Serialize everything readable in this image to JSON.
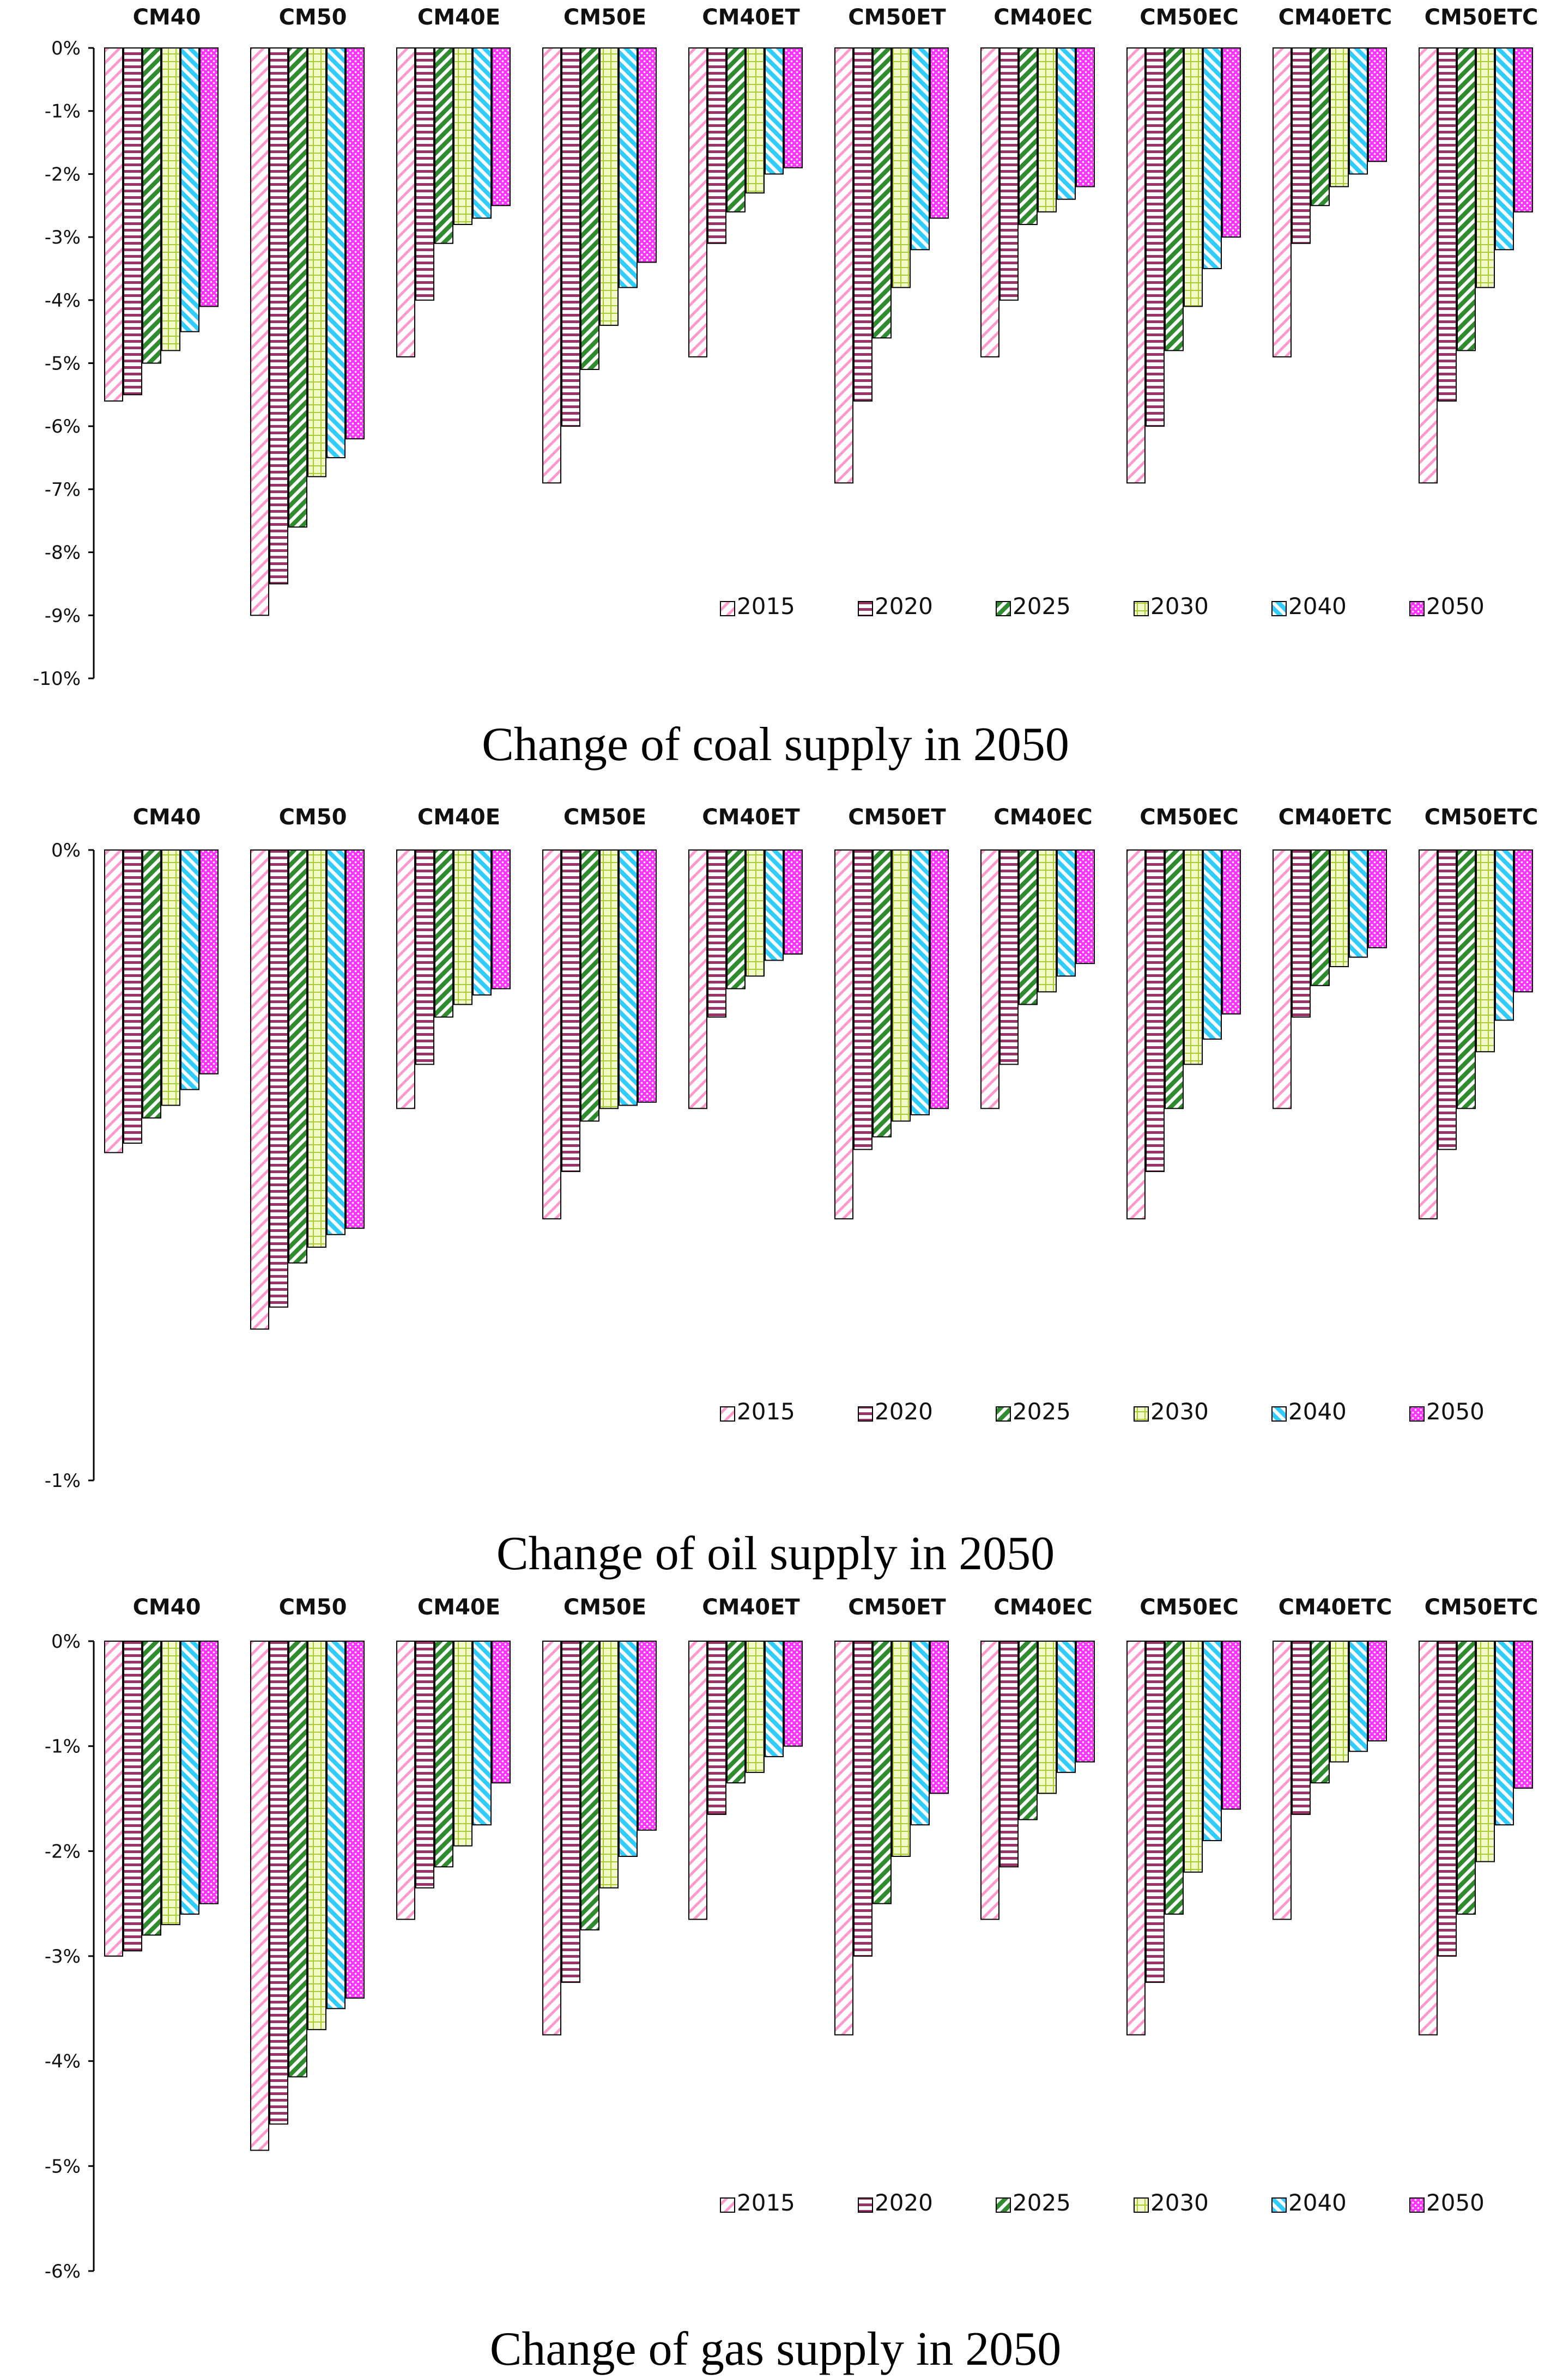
{
  "chart_data": [
    {
      "type": "bar",
      "title": "Change of coal supply in 2050",
      "categories": [
        "CM40",
        "CM50",
        "CM40E",
        "CM50E",
        "CM40ET",
        "CM50ET",
        "CM40EC",
        "CM50EC",
        "CM40ETC",
        "CM50ETC"
      ],
      "ylim": [
        -10,
        0
      ],
      "yticks": [
        0,
        -1,
        -2,
        -3,
        -4,
        -5,
        -6,
        -7,
        -8,
        -9,
        -10
      ],
      "ytick_labels": [
        "0%",
        "-1%",
        "-2%",
        "-3%",
        "-4%",
        "-5%",
        "-6%",
        "-7%",
        "-8%",
        "-9%",
        "-10%"
      ],
      "legend_position": "bottom-right",
      "series": [
        {
          "name": "2015",
          "values": [
            -5.6,
            -9.0,
            -4.9,
            -6.9,
            -4.9,
            -6.9,
            -4.9,
            -6.9,
            -4.9,
            -6.9
          ]
        },
        {
          "name": "2020",
          "values": [
            -5.5,
            -8.5,
            -4.0,
            -6.0,
            -3.1,
            -5.6,
            -4.0,
            -6.0,
            -3.1,
            -5.6
          ]
        },
        {
          "name": "2025",
          "values": [
            -5.0,
            -7.6,
            -3.1,
            -5.1,
            -2.6,
            -4.6,
            -2.8,
            -4.8,
            -2.5,
            -4.8
          ]
        },
        {
          "name": "2030",
          "values": [
            -4.8,
            -6.8,
            -2.8,
            -4.4,
            -2.3,
            -3.8,
            -2.6,
            -4.1,
            -2.2,
            -3.8
          ]
        },
        {
          "name": "2040",
          "values": [
            -4.5,
            -6.5,
            -2.7,
            -3.8,
            -2.0,
            -3.2,
            -2.4,
            -3.5,
            -2.0,
            -3.2
          ]
        },
        {
          "name": "2050",
          "values": [
            -4.1,
            -6.2,
            -2.5,
            -3.4,
            -1.9,
            -2.7,
            -2.2,
            -3.0,
            -1.8,
            -2.6
          ]
        }
      ]
    },
    {
      "type": "bar",
      "title": "Change of oil supply in 2050",
      "categories": [
        "CM40",
        "CM50",
        "CM40E",
        "CM50E",
        "CM40ET",
        "CM50ET",
        "CM40EC",
        "CM50EC",
        "CM40ETC",
        "CM50ETC"
      ],
      "ylim": [
        -1,
        0
      ],
      "yticks": [
        0,
        -1
      ],
      "ytick_labels": [
        "0%",
        "-1%"
      ],
      "legend_position": "bottom-right",
      "series": [
        {
          "name": "2015",
          "values": [
            -0.48,
            -0.76,
            -0.41,
            -0.585,
            -0.41,
            -0.585,
            -0.41,
            -0.585,
            -0.41,
            -0.585
          ]
        },
        {
          "name": "2020",
          "values": [
            -0.465,
            -0.725,
            -0.34,
            -0.51,
            -0.265,
            -0.475,
            -0.34,
            -0.51,
            -0.265,
            -0.475
          ]
        },
        {
          "name": "2025",
          "values": [
            -0.425,
            -0.655,
            -0.265,
            -0.43,
            -0.22,
            -0.455,
            -0.245,
            -0.41,
            -0.215,
            -0.41
          ]
        },
        {
          "name": "2030",
          "values": [
            -0.405,
            -0.63,
            -0.245,
            -0.41,
            -0.2,
            -0.43,
            -0.225,
            -0.34,
            -0.185,
            -0.32
          ]
        },
        {
          "name": "2040",
          "values": [
            -0.38,
            -0.61,
            -0.23,
            -0.405,
            -0.175,
            -0.42,
            -0.2,
            -0.3,
            -0.17,
            -0.27
          ]
        },
        {
          "name": "2050",
          "values": [
            -0.355,
            -0.6,
            -0.22,
            -0.4,
            -0.165,
            -0.41,
            -0.18,
            -0.26,
            -0.155,
            -0.225
          ]
        }
      ]
    },
    {
      "type": "bar",
      "title": "Change of gas supply in 2050",
      "categories": [
        "CM40",
        "CM50",
        "CM40E",
        "CM50E",
        "CM40ET",
        "CM50ET",
        "CM40EC",
        "CM50EC",
        "CM40ETC",
        "CM50ETC"
      ],
      "ylim": [
        -6,
        0
      ],
      "yticks": [
        0,
        -1,
        -2,
        -3,
        -4,
        -5,
        -6
      ],
      "ytick_labels": [
        "0%",
        "-1%",
        "-2%",
        "-3%",
        "-4%",
        "-5%",
        "-6%"
      ],
      "legend_position": "bottom-right",
      "series": [
        {
          "name": "2015",
          "values": [
            -3.0,
            -4.85,
            -2.65,
            -3.75,
            -2.65,
            -3.75,
            -2.65,
            -3.75,
            -2.65,
            -3.75
          ]
        },
        {
          "name": "2020",
          "values": [
            -2.95,
            -4.6,
            -2.35,
            -3.25,
            -1.65,
            -3.0,
            -2.15,
            -3.25,
            -1.65,
            -3.0
          ]
        },
        {
          "name": "2025",
          "values": [
            -2.8,
            -4.15,
            -2.15,
            -2.75,
            -1.35,
            -2.5,
            -1.7,
            -2.6,
            -1.35,
            -2.6
          ]
        },
        {
          "name": "2030",
          "values": [
            -2.7,
            -3.7,
            -1.95,
            -2.35,
            -1.25,
            -2.05,
            -1.45,
            -2.2,
            -1.15,
            -2.1
          ]
        },
        {
          "name": "2040",
          "values": [
            -2.6,
            -3.5,
            -1.75,
            -2.05,
            -1.1,
            -1.75,
            -1.25,
            -1.9,
            -1.05,
            -1.75
          ]
        },
        {
          "name": "2050",
          "values": [
            -2.5,
            -3.4,
            -1.35,
            -1.8,
            -1.0,
            -1.45,
            -1.15,
            -1.6,
            -0.95,
            -1.4
          ]
        }
      ]
    }
  ],
  "series_styles": [
    {
      "name": "2015",
      "color": "#FF99CC",
      "pattern": "diagonal-up"
    },
    {
      "name": "2020",
      "color": "#993366",
      "pattern": "horizontal"
    },
    {
      "name": "2025",
      "color": "#339933",
      "pattern": "diagonal-up-bold"
    },
    {
      "name": "2030",
      "color": "#CCEE66",
      "pattern": "grid"
    },
    {
      "name": "2040",
      "color": "#33CCFF",
      "pattern": "diagonal-down"
    },
    {
      "name": "2050",
      "color": "#FF33FF",
      "pattern": "dots"
    }
  ]
}
